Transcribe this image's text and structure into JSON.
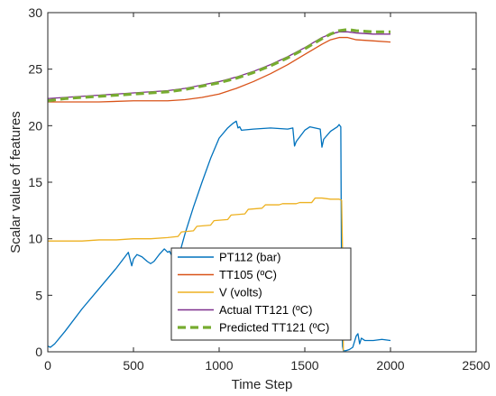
{
  "chart_data": {
    "type": "line",
    "title": "",
    "xlabel": "Time Step",
    "ylabel": "Scalar value of features",
    "xlim": [
      0,
      2500
    ],
    "ylim": [
      0,
      30
    ],
    "xticks": [
      0,
      500,
      1000,
      1500,
      2000,
      2500
    ],
    "yticks": [
      0,
      5,
      10,
      15,
      20,
      25,
      30
    ],
    "grid": false,
    "legend_position": "bottom-center",
    "series": [
      {
        "name": "PT112 (bar)",
        "color": "#0072BD",
        "dash": "solid",
        "x": [
          0,
          15,
          40,
          100,
          200,
          300,
          400,
          470,
          490,
          500,
          520,
          550,
          580,
          600,
          620,
          650,
          680,
          700,
          710,
          720,
          740,
          760,
          780,
          800,
          850,
          900,
          950,
          1000,
          1050,
          1080,
          1100,
          1110,
          1120,
          1130,
          1200,
          1300,
          1400,
          1430,
          1440,
          1450,
          1500,
          1530,
          1560,
          1590,
          1600,
          1610,
          1650,
          1690,
          1700,
          1710,
          1715,
          1720,
          1725,
          1730,
          1740,
          1760,
          1780,
          1800,
          1810,
          1820,
          1830,
          1850,
          1900,
          1950,
          2000
        ],
        "y": [
          0.5,
          0.4,
          0.7,
          1.8,
          3.8,
          5.6,
          7.4,
          8.8,
          7.6,
          8.2,
          8.6,
          8.4,
          8.0,
          7.8,
          8.0,
          8.6,
          9.1,
          8.8,
          8.9,
          8.6,
          8.0,
          8.3,
          9.3,
          10.4,
          12.8,
          15.0,
          17.1,
          18.9,
          19.8,
          20.2,
          20.4,
          19.8,
          19.9,
          19.6,
          19.7,
          19.8,
          19.7,
          19.8,
          18.2,
          18.6,
          19.6,
          19.9,
          19.8,
          19.7,
          18.1,
          18.8,
          19.5,
          19.9,
          20.1,
          19.9,
          5.0,
          0.5,
          0.1,
          0.1,
          0.1,
          0.2,
          0.4,
          1.4,
          1.6,
          0.7,
          1.2,
          1.0,
          1.0,
          1.1,
          1.0
        ]
      },
      {
        "name": "TT105  (ºC)",
        "color": "#D95319",
        "dash": "solid",
        "x": [
          0,
          100,
          300,
          500,
          700,
          800,
          900,
          1000,
          1100,
          1200,
          1300,
          1400,
          1500,
          1600,
          1650,
          1700,
          1750,
          1800,
          1900,
          2000
        ],
        "y": [
          22.1,
          22.1,
          22.1,
          22.2,
          22.2,
          22.3,
          22.5,
          22.8,
          23.3,
          23.9,
          24.6,
          25.4,
          26.3,
          27.2,
          27.6,
          27.8,
          27.8,
          27.6,
          27.5,
          27.4
        ]
      },
      {
        "name": "V (volts)",
        "color": "#EDB120",
        "dash": "solid",
        "x": [
          0,
          100,
          200,
          300,
          400,
          500,
          600,
          700,
          760,
          780,
          850,
          870,
          950,
          970,
          1050,
          1070,
          1150,
          1170,
          1250,
          1270,
          1350,
          1370,
          1450,
          1470,
          1540,
          1560,
          1600,
          1650,
          1700,
          1715,
          1720,
          1725
        ],
        "y": [
          9.8,
          9.8,
          9.8,
          9.9,
          9.9,
          10.0,
          10.0,
          10.1,
          10.2,
          10.6,
          10.7,
          11.1,
          11.2,
          11.6,
          11.7,
          12.1,
          12.2,
          12.6,
          12.7,
          13.0,
          13.0,
          13.1,
          13.1,
          13.2,
          13.2,
          13.6,
          13.6,
          13.5,
          13.5,
          13.4,
          9.0,
          0.1
        ]
      },
      {
        "name": "Actual  TT121  (ºC)",
        "color": "#7E2F8E",
        "dash": "solid",
        "x": [
          0,
          100,
          300,
          500,
          700,
          800,
          900,
          1000,
          1100,
          1200,
          1300,
          1400,
          1500,
          1600,
          1650,
          1700,
          1750,
          1800,
          1900,
          2000
        ],
        "y": [
          22.4,
          22.5,
          22.7,
          22.9,
          23.1,
          23.3,
          23.6,
          23.9,
          24.3,
          24.8,
          25.4,
          26.1,
          26.9,
          27.8,
          28.1,
          28.3,
          28.3,
          28.2,
          28.1,
          28.1
        ]
      },
      {
        "name": "Predicted  TT121  (ºC)",
        "color": "#77AC30",
        "dash": "dashed",
        "x": [
          0,
          100,
          300,
          500,
          700,
          800,
          900,
          1000,
          1100,
          1200,
          1300,
          1400,
          1500,
          1600,
          1650,
          1700,
          1750,
          1800,
          1900,
          2000
        ],
        "y": [
          22.2,
          22.4,
          22.6,
          22.8,
          23.0,
          23.2,
          23.5,
          23.8,
          24.2,
          24.7,
          25.3,
          26.0,
          26.8,
          27.7,
          28.1,
          28.4,
          28.5,
          28.4,
          28.3,
          28.3
        ]
      }
    ]
  }
}
